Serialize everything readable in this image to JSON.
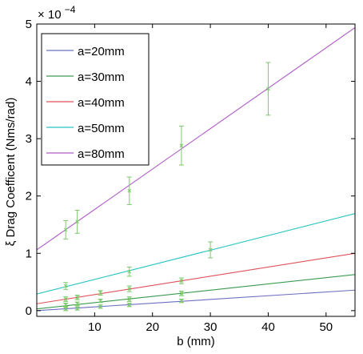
{
  "chart_data": {
    "type": "line",
    "title": "",
    "xlabel": "b (mm)",
    "ylabel": "ξ Drag Coefficent (Nms/rad)",
    "y_exponent_label": "× 10",
    "y_exponent_power": "−4",
    "xlim": [
      0,
      55
    ],
    "ylim": [
      -0.1,
      5
    ],
    "xticks": [
      10,
      20,
      30,
      40,
      50
    ],
    "yticks": [
      0,
      1,
      2,
      3,
      4,
      5
    ],
    "grid": false,
    "legend_position": "top-left",
    "series": [
      {
        "name": "a=20mm",
        "color": "#6b6fbf",
        "line": {
          "intercept": 0.0,
          "slope": 0.0065
        },
        "points": [
          {
            "x": 5,
            "y": 0.03,
            "err": 0.03
          },
          {
            "x": 7,
            "y": 0.04,
            "err": 0.03
          },
          {
            "x": 11,
            "y": 0.07,
            "err": 0.03
          },
          {
            "x": 16,
            "y": 0.1,
            "err": 0.03
          },
          {
            "x": 25,
            "y": 0.17,
            "err": 0.03
          }
        ]
      },
      {
        "name": "a=30mm",
        "color": "#3b9a4f",
        "line": {
          "intercept": 0.03,
          "slope": 0.0109
        },
        "points": [
          {
            "x": 5,
            "y": 0.1,
            "err": 0.03
          },
          {
            "x": 7,
            "y": 0.12,
            "err": 0.03
          },
          {
            "x": 11,
            "y": 0.17,
            "err": 0.03
          },
          {
            "x": 16,
            "y": 0.2,
            "err": 0.04
          },
          {
            "x": 25,
            "y": 0.3,
            "err": 0.04
          }
        ]
      },
      {
        "name": "a=40mm",
        "color": "#e0505a",
        "line": {
          "intercept": 0.12,
          "slope": 0.016
        },
        "points": [
          {
            "x": 5,
            "y": 0.2,
            "err": 0.04
          },
          {
            "x": 7,
            "y": 0.23,
            "err": 0.04
          },
          {
            "x": 11,
            "y": 0.31,
            "err": 0.04
          },
          {
            "x": 16,
            "y": 0.38,
            "err": 0.05
          },
          {
            "x": 25,
            "y": 0.52,
            "err": 0.05
          }
        ]
      },
      {
        "name": "a=50mm",
        "color": "#27c4c4",
        "line": {
          "intercept": 0.29,
          "slope": 0.0255
        },
        "points": [
          {
            "x": 5,
            "y": 0.43,
            "err": 0.06
          },
          {
            "x": 16,
            "y": 0.68,
            "err": 0.08
          },
          {
            "x": 30,
            "y": 1.06,
            "err": 0.14
          }
        ]
      },
      {
        "name": "a=80mm",
        "color": "#b05ac8",
        "line": {
          "intercept": 1.06,
          "slope": 0.0705
        },
        "points": [
          {
            "x": 5,
            "y": 1.41,
            "err": 0.16
          },
          {
            "x": 7,
            "y": 1.55,
            "err": 0.2
          },
          {
            "x": 16,
            "y": 2.09,
            "err": 0.24
          },
          {
            "x": 25,
            "y": 2.88,
            "err": 0.34
          },
          {
            "x": 40,
            "y": 3.87,
            "err": 0.46
          }
        ]
      }
    ],
    "marker_color": "#7bc96a"
  }
}
